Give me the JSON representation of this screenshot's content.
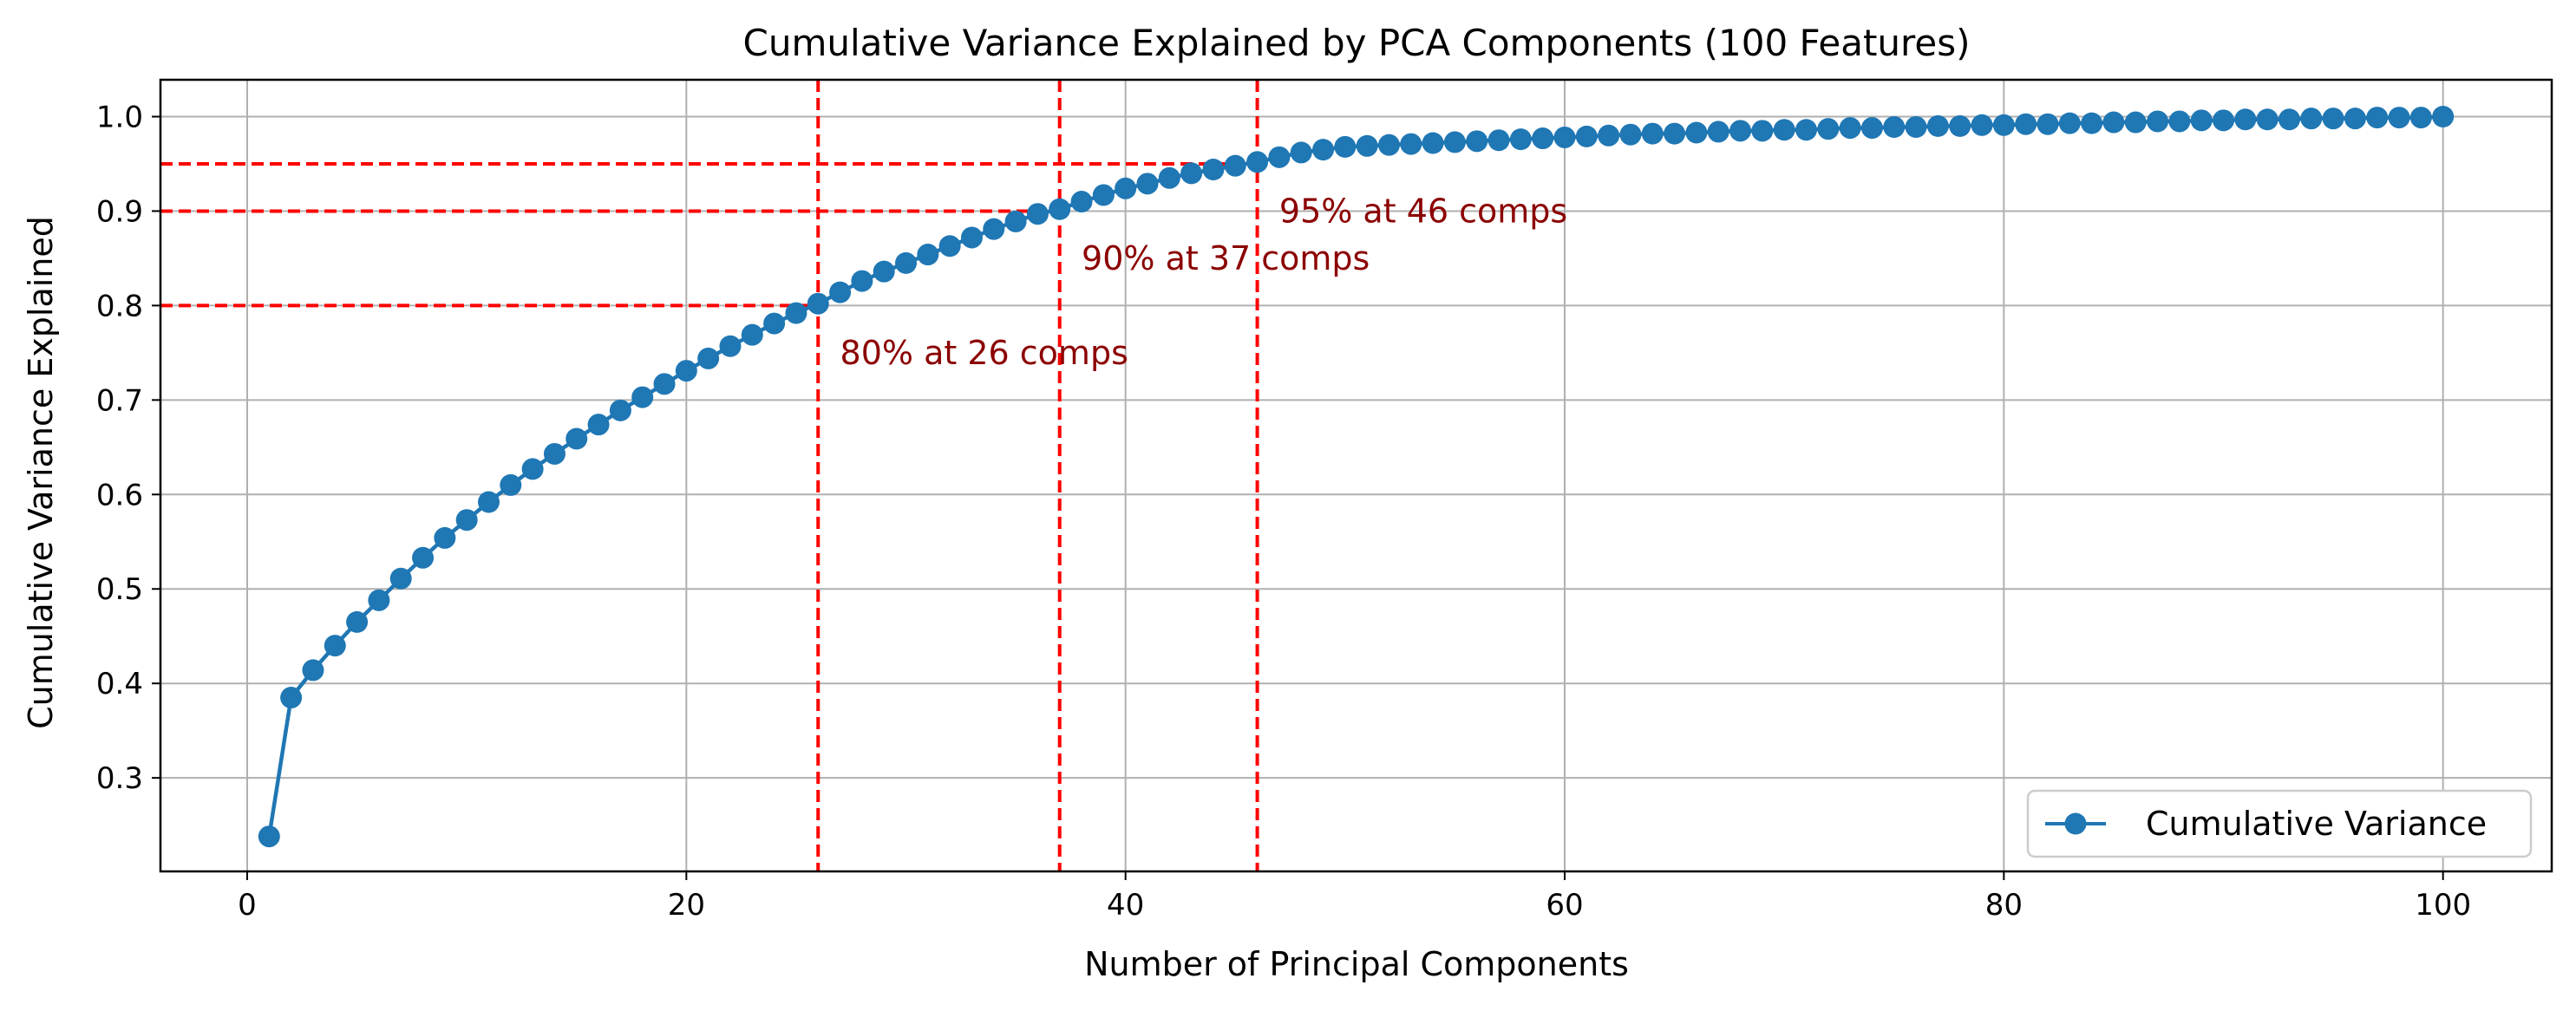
{
  "chart_data": {
    "type": "line",
    "title": "Cumulative Variance Explained by PCA Components (100 Features)",
    "xlabel": "Number of Principal Components",
    "ylabel": "Cumulative Variance Explained",
    "xlim": [
      -3.95,
      104.95
    ],
    "ylim": [
      0.201,
      1.039
    ],
    "xticks": [
      0,
      20,
      40,
      60,
      80,
      100
    ],
    "yticks": [
      0.3,
      0.4,
      0.5,
      0.6,
      0.7,
      0.8,
      0.9,
      1.0
    ],
    "xtick_labels": [
      "0",
      "20",
      "40",
      "60",
      "80",
      "100"
    ],
    "ytick_labels": [
      "0.3",
      "0.4",
      "0.5",
      "0.6",
      "0.7",
      "0.8",
      "0.9",
      "1.0"
    ],
    "grid": true,
    "legend_position": "bottom-right",
    "series": [
      {
        "name": "Cumulative Variance",
        "color": "#1f77b4",
        "marker": "circle",
        "x": [
          1,
          2,
          3,
          4,
          5,
          6,
          7,
          8,
          9,
          10,
          11,
          12,
          13,
          14,
          15,
          16,
          17,
          18,
          19,
          20,
          21,
          22,
          23,
          24,
          25,
          26,
          27,
          28,
          29,
          30,
          31,
          32,
          33,
          34,
          35,
          36,
          37,
          38,
          39,
          40,
          41,
          42,
          43,
          44,
          45,
          46,
          47,
          48,
          49,
          50,
          51,
          52,
          53,
          54,
          55,
          56,
          57,
          58,
          59,
          60,
          61,
          62,
          63,
          64,
          65,
          66,
          67,
          68,
          69,
          70,
          71,
          72,
          73,
          74,
          75,
          76,
          77,
          78,
          79,
          80,
          81,
          82,
          83,
          84,
          85,
          86,
          87,
          88,
          89,
          90,
          91,
          92,
          93,
          94,
          95,
          96,
          97,
          98,
          99,
          100
        ],
        "y": [
          0.238,
          0.385,
          0.414,
          0.44,
          0.465,
          0.488,
          0.511,
          0.533,
          0.554,
          0.573,
          0.592,
          0.61,
          0.627,
          0.643,
          0.659,
          0.674,
          0.689,
          0.703,
          0.717,
          0.731,
          0.744,
          0.757,
          0.769,
          0.781,
          0.792,
          0.802,
          0.814,
          0.826,
          0.836,
          0.845,
          0.854,
          0.863,
          0.872,
          0.881,
          0.889,
          0.897,
          0.902,
          0.91,
          0.917,
          0.924,
          0.929,
          0.935,
          0.94,
          0.944,
          0.948,
          0.952,
          0.957,
          0.962,
          0.965,
          0.968,
          0.969,
          0.97,
          0.971,
          0.972,
          0.973,
          0.974,
          0.975,
          0.976,
          0.977,
          0.978,
          0.979,
          0.98,
          0.981,
          0.982,
          0.982,
          0.983,
          0.984,
          0.985,
          0.985,
          0.986,
          0.986,
          0.987,
          0.988,
          0.988,
          0.989,
          0.989,
          0.99,
          0.99,
          0.991,
          0.991,
          0.992,
          0.992,
          0.993,
          0.993,
          0.994,
          0.994,
          0.995,
          0.995,
          0.996,
          0.996,
          0.997,
          0.997,
          0.997,
          0.998,
          0.998,
          0.998,
          0.999,
          0.999,
          0.999,
          1.0
        ]
      }
    ],
    "thresholds": [
      {
        "level": 0.8,
        "components": 26,
        "label": "80% at 26 comps"
      },
      {
        "level": 0.9,
        "components": 37,
        "label": "90% at 37 comps"
      },
      {
        "level": 0.95,
        "components": 46,
        "label": "95% at 46 comps"
      }
    ],
    "colors": {
      "threshold_line": "#ff0000",
      "annotation_text": "#8b0000",
      "grid": "#b0b0b0",
      "line": "#1f77b4"
    }
  }
}
